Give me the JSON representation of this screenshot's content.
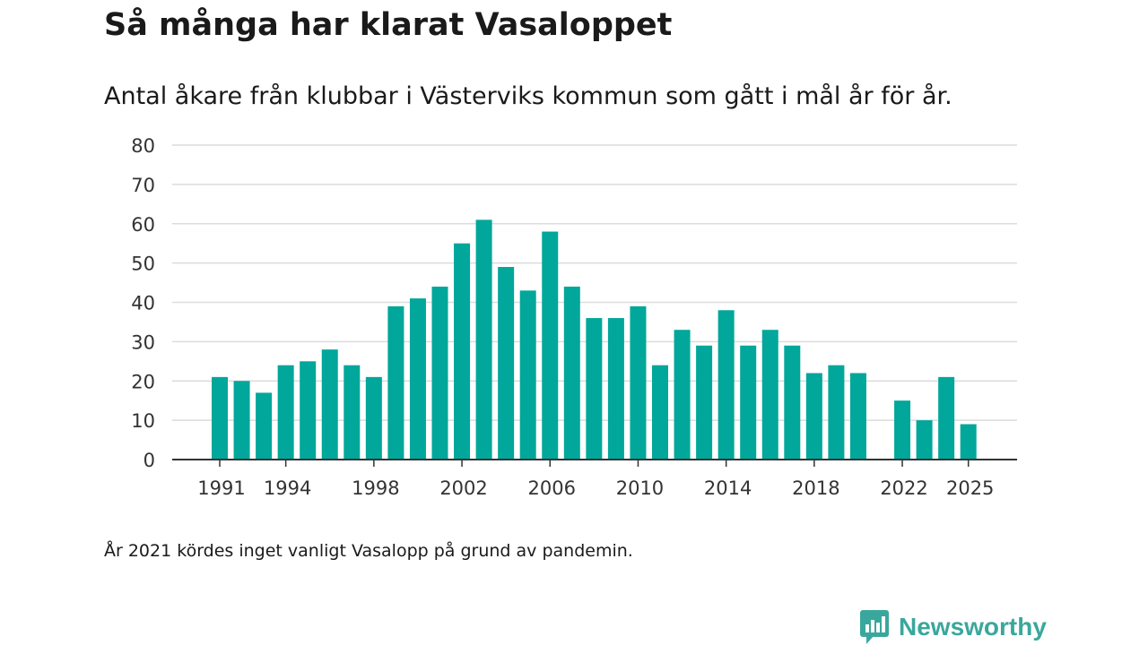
{
  "title": "Så många har klarat Vasaloppet",
  "subtitle": "Antal åkare från klubbar i Västerviks kommun som gått i mål år för år.",
  "note": "År 2021 kördes inget vanligt Vasalopp på grund av pandemin.",
  "brand": {
    "name": "Newsworthy",
    "icon": "newsworthy-logo-icon"
  },
  "colors": {
    "bar": "#00a79a",
    "grid": "#dcdcdc",
    "axis": "#333333",
    "brand": "#3aa79c"
  },
  "chart_data": {
    "type": "bar",
    "title": "Så många har klarat Vasaloppet",
    "subtitle": "Antal åkare från klubbar i Västerviks kommun som gått i mål år för år.",
    "xlabel": "",
    "ylabel": "",
    "ylim": [
      0,
      80
    ],
    "yticks": [
      0,
      10,
      20,
      30,
      40,
      50,
      60,
      70,
      80
    ],
    "xticks": [
      "1991",
      "1994",
      "1998",
      "2002",
      "2006",
      "2010",
      "2014",
      "2018",
      "2022",
      "2025"
    ],
    "grid": true,
    "categories": [
      1991,
      1992,
      1993,
      1994,
      1995,
      1996,
      1997,
      1998,
      1999,
      2000,
      2001,
      2002,
      2003,
      2004,
      2005,
      2006,
      2007,
      2008,
      2009,
      2010,
      2011,
      2012,
      2013,
      2014,
      2015,
      2016,
      2017,
      2018,
      2019,
      2020,
      2021,
      2022,
      2023,
      2024,
      2025
    ],
    "values": [
      21,
      20,
      17,
      24,
      25,
      28,
      24,
      21,
      39,
      41,
      44,
      55,
      61,
      49,
      43,
      58,
      44,
      36,
      36,
      39,
      24,
      33,
      29,
      38,
      29,
      33,
      29,
      22,
      24,
      22,
      null,
      15,
      10,
      21,
      9
    ]
  }
}
